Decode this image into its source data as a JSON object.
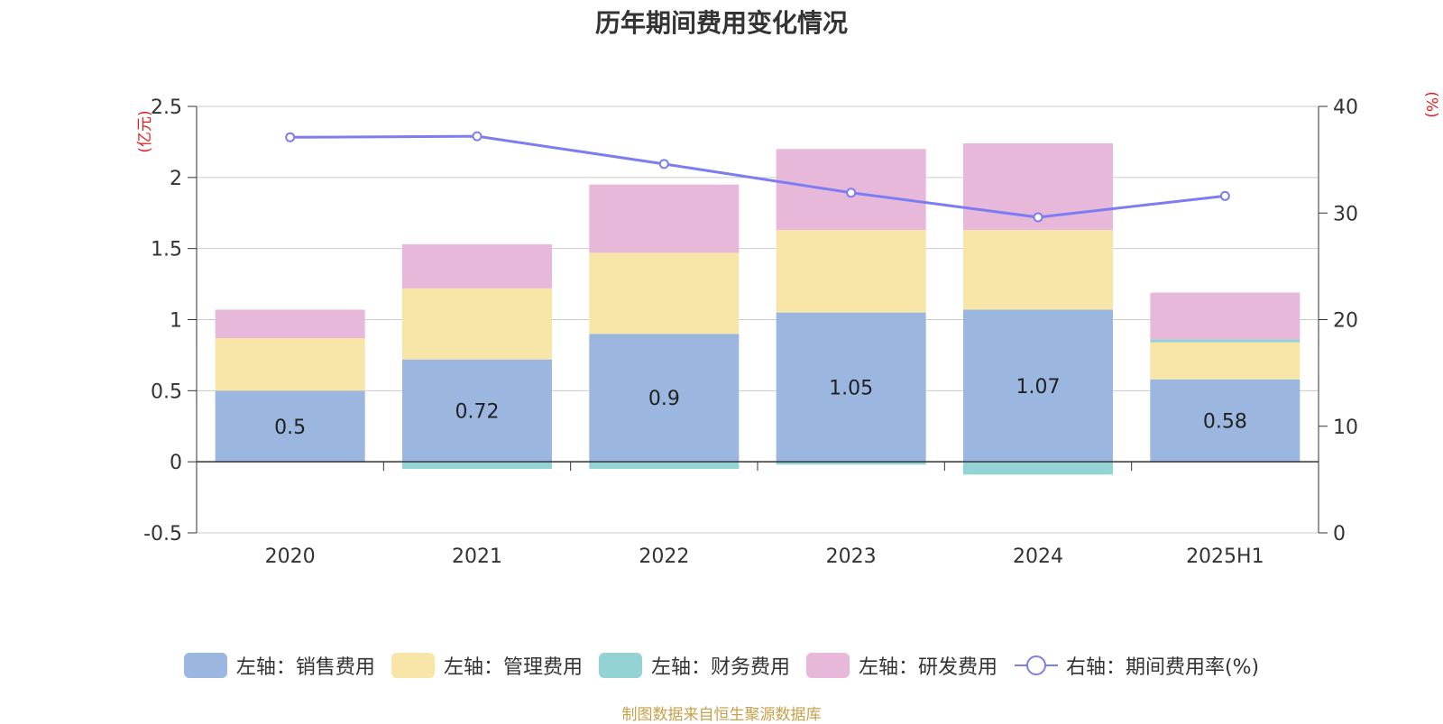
{
  "chart_data": {
    "type": "bar",
    "title": "历年期间费用变化情况",
    "categories": [
      "2020",
      "2021",
      "2022",
      "2023",
      "2024",
      "2025H1"
    ],
    "left_axis": {
      "unit_label": "(亿元)",
      "ylim": [
        -0.5,
        2.5
      ],
      "ticks": [
        "2.5",
        "2",
        "1.5",
        "1",
        "0.5",
        "0",
        "-0.5"
      ]
    },
    "right_axis": {
      "unit_label": "(%)",
      "ylim": [
        0,
        40
      ],
      "ticks": [
        "40",
        "30",
        "20",
        "10",
        "0"
      ]
    },
    "series": [
      {
        "name": "左轴：销售费用",
        "type": "stacked-bar",
        "color": "#9bb7e0",
        "values": [
          0.5,
          0.72,
          0.9,
          1.05,
          1.07,
          0.58
        ],
        "labels": [
          "0.5",
          "0.72",
          "0.9",
          "1.05",
          "1.07",
          "0.58"
        ]
      },
      {
        "name": "左轴：管理费用",
        "type": "stacked-bar",
        "color": "#f8e6a8",
        "values": [
          0.37,
          0.5,
          0.57,
          0.58,
          0.56,
          0.26
        ]
      },
      {
        "name": "左轴：财务费用",
        "type": "stacked-bar",
        "color": "#93d3d3",
        "values": [
          0.0,
          -0.05,
          -0.05,
          -0.02,
          -0.09,
          0.02
        ]
      },
      {
        "name": "左轴：研发费用",
        "type": "stacked-bar",
        "color": "#e7b8d9",
        "values": [
          0.2,
          0.31,
          0.48,
          0.57,
          0.61,
          0.33
        ]
      },
      {
        "name": "右轴：期间费用率(%)",
        "type": "line",
        "axis": "right",
        "color": "#7b7df0",
        "values": [
          37.1,
          37.2,
          34.6,
          31.9,
          29.6,
          31.6
        ]
      }
    ],
    "legend_position": "bottom",
    "grid": true
  },
  "source_note": "制图数据来自恒生聚源数据库"
}
